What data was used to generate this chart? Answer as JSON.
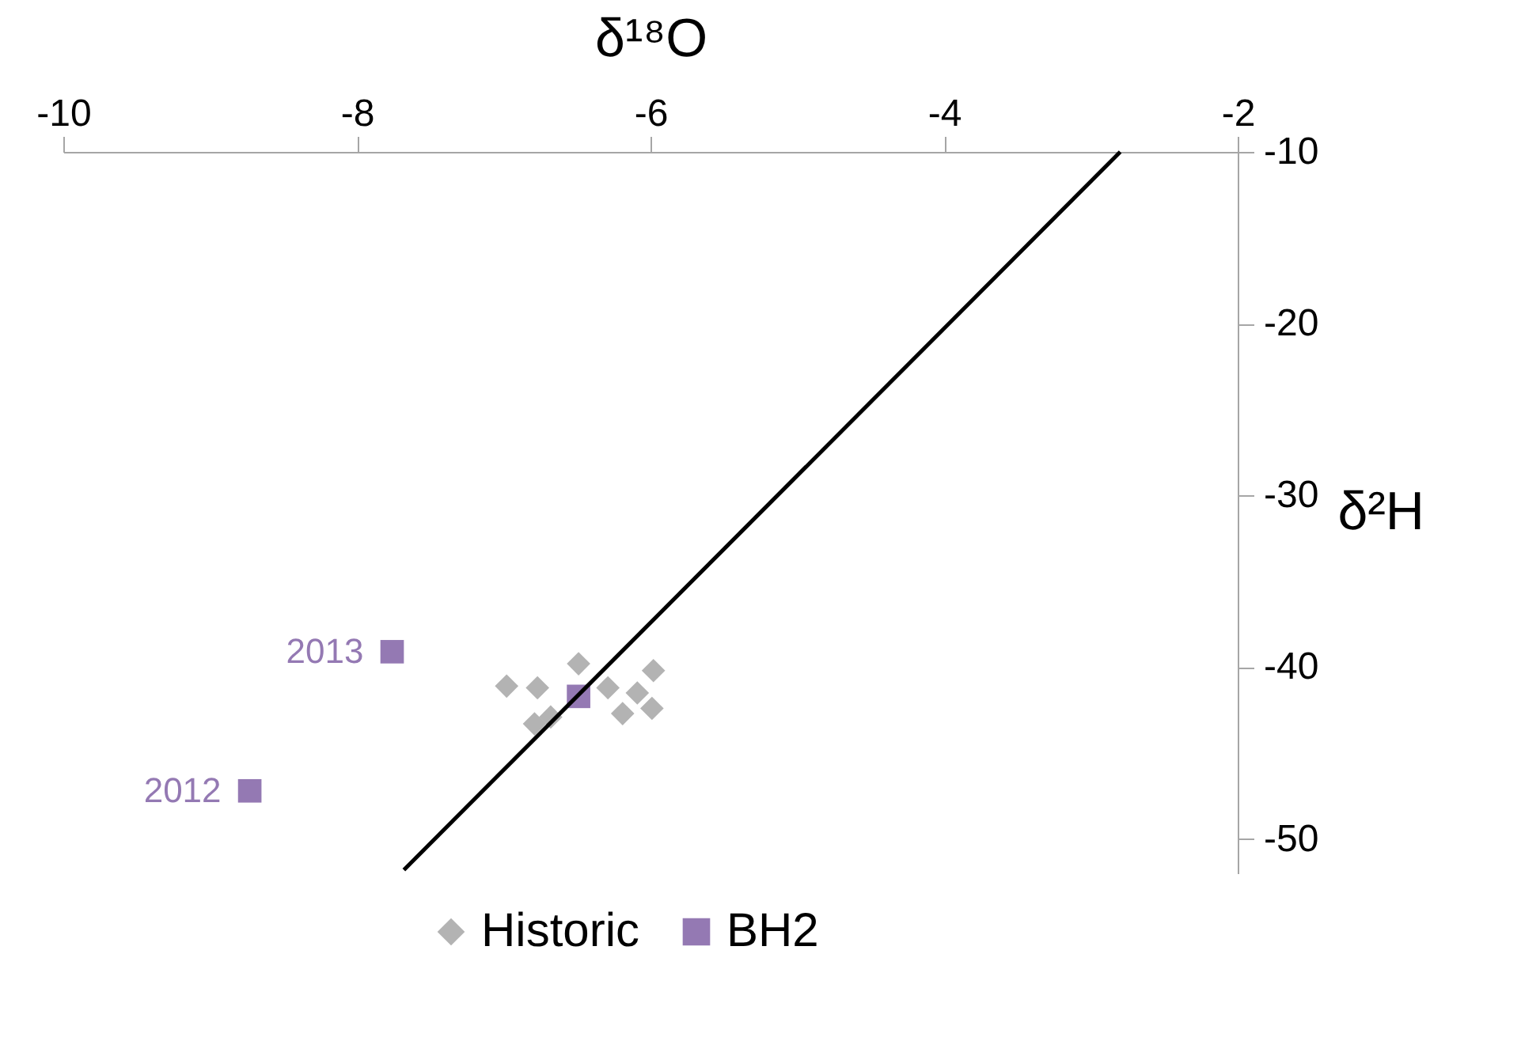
{
  "chart_data": {
    "type": "scatter",
    "xlabel": "δ¹⁸O",
    "ylabel": "δ²H",
    "xlim": [
      -10,
      -2
    ],
    "xticks": [
      -10,
      -8,
      -6,
      -4,
      -2
    ],
    "ylim": [
      -52,
      -10
    ],
    "yticks": [
      -10,
      -20,
      -30,
      -40,
      -50
    ],
    "grid": false,
    "legend": "bottom",
    "series": [
      {
        "name": "Historic",
        "marker": "diamond",
        "color": "#b3b3b3",
        "x": [
          -6.98,
          -6.77,
          -6.49,
          -6.29,
          -6.09,
          -5.98,
          -5.99,
          -6.19,
          -6.79,
          -6.68
        ],
        "values": [
          -41.1,
          -41.2,
          -39.8,
          -41.2,
          -41.5,
          -40.2,
          -42.4,
          -42.7,
          -43.3,
          -42.9
        ]
      },
      {
        "name": "BH2",
        "marker": "square",
        "color": "#9479b3",
        "x": [
          -6.49,
          -7.76,
          -8.73
        ],
        "values": [
          -41.7,
          -39.1,
          -47.2
        ]
      },
      {
        "type": "line",
        "color": "#000000",
        "x": [
          -7.68,
          -2.8
        ],
        "values": [
          -51.8,
          -10
        ]
      }
    ],
    "annotations": [
      {
        "text": "2013",
        "x": -7.76,
        "y": -39.1
      },
      {
        "text": "2012",
        "x": -8.73,
        "y": -47.2
      }
    ]
  }
}
